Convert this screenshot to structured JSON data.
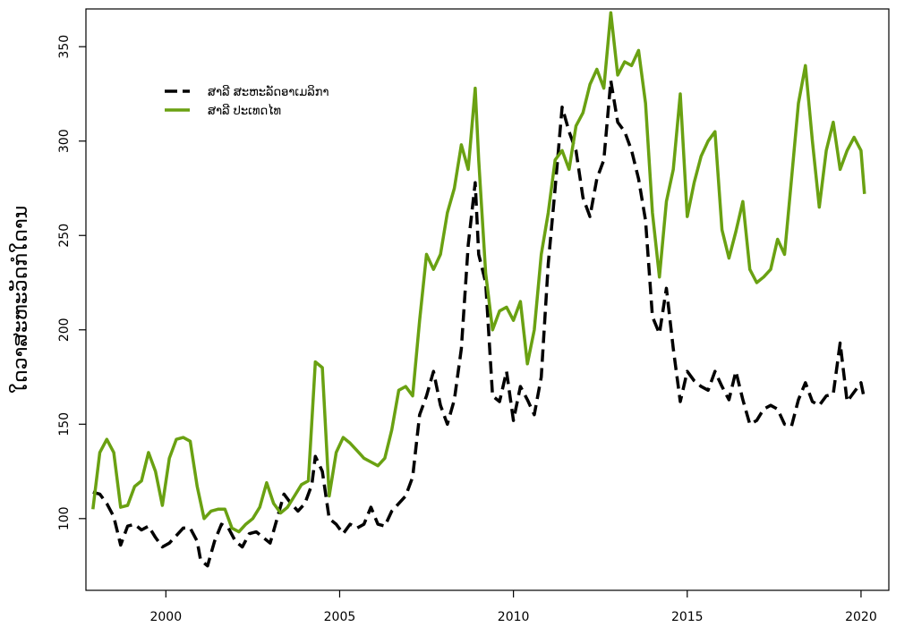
{
  "chart_data": {
    "type": "line",
    "title": "",
    "xlabel": "",
    "ylabel": "ໃດວາສະຫະວັດກໍໃດານ",
    "xlim": [
      1997.7,
      2020.8
    ],
    "ylim": [
      62,
      370
    ],
    "x_ticks": [
      2000,
      2005,
      2010,
      2015,
      2020
    ],
    "y_ticks": [
      100,
      150,
      200,
      250,
      300,
      350
    ],
    "grid": false,
    "legend_position": "top-left",
    "series": [
      {
        "name": "ສາລີ ສະຫະລັດອາເມລິກາ",
        "color": "#000000",
        "style": "dashed",
        "points": [
          [
            1997.9,
            114
          ],
          [
            1998.1,
            113
          ],
          [
            1998.3,
            108
          ],
          [
            1998.5,
            101
          ],
          [
            1998.7,
            86
          ],
          [
            1998.9,
            96
          ],
          [
            1999.1,
            97
          ],
          [
            1999.3,
            94
          ],
          [
            1999.5,
            96
          ],
          [
            1999.7,
            90
          ],
          [
            1999.9,
            85
          ],
          [
            2000.1,
            87
          ],
          [
            2000.3,
            91
          ],
          [
            2000.5,
            95
          ],
          [
            2000.7,
            95
          ],
          [
            2000.9,
            88
          ],
          [
            2001.0,
            78
          ],
          [
            2001.2,
            75
          ],
          [
            2001.4,
            88
          ],
          [
            2001.6,
            97
          ],
          [
            2001.8,
            95
          ],
          [
            2002.0,
            88
          ],
          [
            2002.2,
            85
          ],
          [
            2002.4,
            92
          ],
          [
            2002.6,
            93
          ],
          [
            2002.8,
            90
          ],
          [
            2003.0,
            87
          ],
          [
            2003.2,
            100
          ],
          [
            2003.4,
            113
          ],
          [
            2003.6,
            108
          ],
          [
            2003.8,
            104
          ],
          [
            2004.0,
            108
          ],
          [
            2004.2,
            118
          ],
          [
            2004.3,
            133
          ],
          [
            2004.5,
            125
          ],
          [
            2004.7,
            100
          ],
          [
            2004.9,
            97
          ],
          [
            2005.1,
            92
          ],
          [
            2005.3,
            97
          ],
          [
            2005.5,
            95
          ],
          [
            2005.7,
            97
          ],
          [
            2005.9,
            106
          ],
          [
            2006.1,
            97
          ],
          [
            2006.3,
            96
          ],
          [
            2006.5,
            104
          ],
          [
            2006.7,
            108
          ],
          [
            2006.9,
            112
          ],
          [
            2007.1,
            122
          ],
          [
            2007.3,
            155
          ],
          [
            2007.5,
            165
          ],
          [
            2007.7,
            178
          ],
          [
            2007.9,
            160
          ],
          [
            2008.1,
            150
          ],
          [
            2008.3,
            163
          ],
          [
            2008.5,
            190
          ],
          [
            2008.7,
            245
          ],
          [
            2008.9,
            278
          ],
          [
            2009.0,
            240
          ],
          [
            2009.2,
            225
          ],
          [
            2009.4,
            165
          ],
          [
            2009.6,
            162
          ],
          [
            2009.8,
            178
          ],
          [
            2010.0,
            152
          ],
          [
            2010.2,
            170
          ],
          [
            2010.4,
            163
          ],
          [
            2010.6,
            155
          ],
          [
            2010.8,
            175
          ],
          [
            2011.0,
            235
          ],
          [
            2011.2,
            275
          ],
          [
            2011.4,
            318
          ],
          [
            2011.6,
            305
          ],
          [
            2011.8,
            295
          ],
          [
            2012.0,
            270
          ],
          [
            2012.2,
            260
          ],
          [
            2012.4,
            280
          ],
          [
            2012.6,
            290
          ],
          [
            2012.8,
            332
          ],
          [
            2013.0,
            310
          ],
          [
            2013.2,
            305
          ],
          [
            2013.4,
            295
          ],
          [
            2013.6,
            280
          ],
          [
            2013.8,
            258
          ],
          [
            2014.0,
            207
          ],
          [
            2014.2,
            198
          ],
          [
            2014.4,
            222
          ],
          [
            2014.6,
            190
          ],
          [
            2014.8,
            162
          ],
          [
            2015.0,
            178
          ],
          [
            2015.2,
            173
          ],
          [
            2015.4,
            170
          ],
          [
            2015.6,
            168
          ],
          [
            2015.8,
            178
          ],
          [
            2016.0,
            170
          ],
          [
            2016.2,
            163
          ],
          [
            2016.4,
            178
          ],
          [
            2016.6,
            163
          ],
          [
            2016.8,
            150
          ],
          [
            2017.0,
            152
          ],
          [
            2017.2,
            158
          ],
          [
            2017.4,
            160
          ],
          [
            2017.6,
            158
          ],
          [
            2017.8,
            150
          ],
          [
            2018.0,
            149
          ],
          [
            2018.2,
            163
          ],
          [
            2018.4,
            172
          ],
          [
            2018.6,
            162
          ],
          [
            2018.8,
            160
          ],
          [
            2019.0,
            165
          ],
          [
            2019.2,
            166
          ],
          [
            2019.4,
            193
          ],
          [
            2019.6,
            162
          ],
          [
            2019.8,
            167
          ],
          [
            2020.0,
            172
          ],
          [
            2020.1,
            163
          ]
        ]
      },
      {
        "name": "ສາລີ ປະເທດໄທ",
        "color": "#6aa112",
        "style": "solid",
        "points": [
          [
            1997.9,
            105
          ],
          [
            1998.1,
            135
          ],
          [
            1998.3,
            142
          ],
          [
            1998.5,
            135
          ],
          [
            1998.7,
            106
          ],
          [
            1998.9,
            107
          ],
          [
            1999.1,
            117
          ],
          [
            1999.3,
            120
          ],
          [
            1999.5,
            135
          ],
          [
            1999.7,
            125
          ],
          [
            1999.9,
            107
          ],
          [
            2000.1,
            132
          ],
          [
            2000.3,
            142
          ],
          [
            2000.5,
            143
          ],
          [
            2000.7,
            141
          ],
          [
            2000.9,
            117
          ],
          [
            2001.1,
            100
          ],
          [
            2001.3,
            104
          ],
          [
            2001.5,
            105
          ],
          [
            2001.7,
            105
          ],
          [
            2001.9,
            95
          ],
          [
            2002.1,
            93
          ],
          [
            2002.3,
            97
          ],
          [
            2002.5,
            100
          ],
          [
            2002.7,
            106
          ],
          [
            2002.9,
            119
          ],
          [
            2003.1,
            108
          ],
          [
            2003.3,
            103
          ],
          [
            2003.5,
            106
          ],
          [
            2003.7,
            112
          ],
          [
            2003.9,
            118
          ],
          [
            2004.1,
            120
          ],
          [
            2004.3,
            183
          ],
          [
            2004.5,
            180
          ],
          [
            2004.7,
            112
          ],
          [
            2004.9,
            135
          ],
          [
            2005.1,
            143
          ],
          [
            2005.3,
            140
          ],
          [
            2005.5,
            136
          ],
          [
            2005.7,
            132
          ],
          [
            2005.9,
            130
          ],
          [
            2006.1,
            128
          ],
          [
            2006.3,
            132
          ],
          [
            2006.5,
            147
          ],
          [
            2006.7,
            168
          ],
          [
            2006.9,
            170
          ],
          [
            2007.1,
            165
          ],
          [
            2007.3,
            205
          ],
          [
            2007.5,
            240
          ],
          [
            2007.7,
            232
          ],
          [
            2007.9,
            240
          ],
          [
            2008.1,
            262
          ],
          [
            2008.3,
            275
          ],
          [
            2008.5,
            298
          ],
          [
            2008.7,
            285
          ],
          [
            2008.9,
            328
          ],
          [
            2009.0,
            290
          ],
          [
            2009.2,
            230
          ],
          [
            2009.4,
            200
          ],
          [
            2009.6,
            210
          ],
          [
            2009.8,
            212
          ],
          [
            2010.0,
            205
          ],
          [
            2010.2,
            215
          ],
          [
            2010.4,
            182
          ],
          [
            2010.6,
            200
          ],
          [
            2010.8,
            240
          ],
          [
            2011.0,
            262
          ],
          [
            2011.2,
            290
          ],
          [
            2011.4,
            295
          ],
          [
            2011.6,
            285
          ],
          [
            2011.8,
            308
          ],
          [
            2012.0,
            315
          ],
          [
            2012.2,
            330
          ],
          [
            2012.4,
            338
          ],
          [
            2012.6,
            328
          ],
          [
            2012.8,
            368
          ],
          [
            2013.0,
            335
          ],
          [
            2013.2,
            342
          ],
          [
            2013.4,
            340
          ],
          [
            2013.6,
            348
          ],
          [
            2013.8,
            320
          ],
          [
            2014.0,
            262
          ],
          [
            2014.2,
            228
          ],
          [
            2014.4,
            268
          ],
          [
            2014.6,
            285
          ],
          [
            2014.8,
            325
          ],
          [
            2015.0,
            260
          ],
          [
            2015.2,
            278
          ],
          [
            2015.4,
            292
          ],
          [
            2015.6,
            300
          ],
          [
            2015.8,
            305
          ],
          [
            2016.0,
            253
          ],
          [
            2016.2,
            238
          ],
          [
            2016.4,
            252
          ],
          [
            2016.6,
            268
          ],
          [
            2016.8,
            232
          ],
          [
            2017.0,
            225
          ],
          [
            2017.2,
            228
          ],
          [
            2017.4,
            232
          ],
          [
            2017.6,
            248
          ],
          [
            2017.8,
            240
          ],
          [
            2018.0,
            280
          ],
          [
            2018.2,
            320
          ],
          [
            2018.4,
            340
          ],
          [
            2018.6,
            300
          ],
          [
            2018.8,
            265
          ],
          [
            2019.0,
            295
          ],
          [
            2019.2,
            310
          ],
          [
            2019.4,
            285
          ],
          [
            2019.6,
            295
          ],
          [
            2019.8,
            302
          ],
          [
            2020.0,
            295
          ],
          [
            2020.1,
            272
          ]
        ]
      }
    ]
  }
}
